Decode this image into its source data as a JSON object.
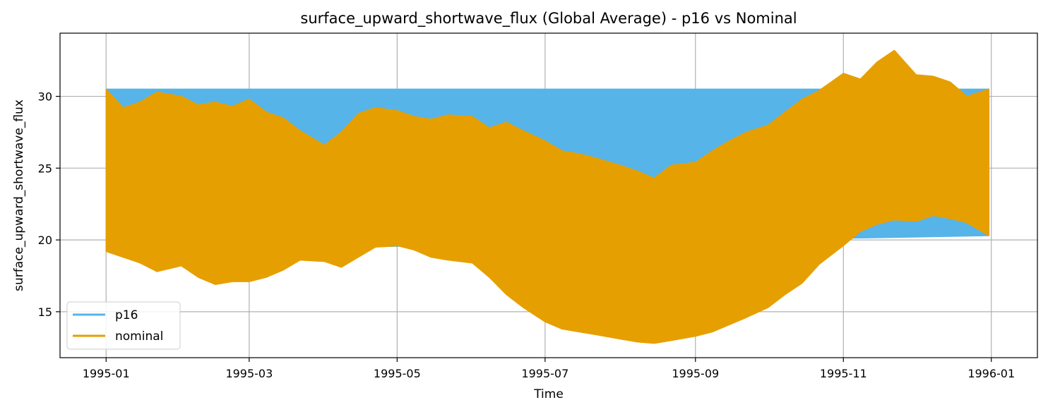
{
  "chart_data": {
    "type": "line",
    "title": "surface_upward_shortwave_flux (Global Average) - p16 vs Nominal",
    "xlabel": "Time",
    "ylabel": "surface_upward_shortwave_flux",
    "xlim": [
      "1994-12-13",
      "1996-01-20"
    ],
    "ylim": [
      11.8,
      34.4
    ],
    "x_ticks": [
      "1995-01",
      "1995-03",
      "1995-05",
      "1995-07",
      "1995-09",
      "1995-11",
      "1996-01"
    ],
    "y_ticks": [
      15,
      20,
      25,
      30
    ],
    "grid": true,
    "legend_position": "lower-left",
    "series": [
      {
        "name": "p16",
        "color": "#56B4E9",
        "x": [
          "1995-01-01",
          "1995-12-31"
        ],
        "upper": [
          30.5,
          30.5
        ],
        "lower": [
          19.2,
          20.3
        ]
      },
      {
        "name": "nominal",
        "color": "#E69F00",
        "x": [
          "1995-01-01",
          "1995-01-08",
          "1995-01-15",
          "1995-01-22",
          "1995-02-01",
          "1995-02-08",
          "1995-02-15",
          "1995-02-22",
          "1995-03-01",
          "1995-03-08",
          "1995-03-15",
          "1995-03-22",
          "1995-04-01",
          "1995-04-08",
          "1995-04-15",
          "1995-04-22",
          "1995-05-01",
          "1995-05-08",
          "1995-05-15",
          "1995-05-22",
          "1995-06-01",
          "1995-06-08",
          "1995-06-15",
          "1995-06-22",
          "1995-07-01",
          "1995-07-08",
          "1995-07-15",
          "1995-07-22",
          "1995-08-01",
          "1995-08-08",
          "1995-08-15",
          "1995-08-22",
          "1995-09-01",
          "1995-09-08",
          "1995-09-15",
          "1995-09-22",
          "1995-10-01",
          "1995-10-08",
          "1995-10-15",
          "1995-10-22",
          "1995-11-01",
          "1995-11-08",
          "1995-11-15",
          "1995-11-22",
          "1995-12-01",
          "1995-12-08",
          "1995-12-15",
          "1995-12-22",
          "1995-12-31"
        ],
        "upper": [
          30.5,
          29.2,
          29.6,
          30.3,
          30.0,
          29.4,
          29.6,
          29.3,
          29.8,
          28.9,
          28.5,
          27.6,
          26.6,
          27.5,
          28.8,
          29.2,
          29.0,
          28.6,
          28.4,
          28.7,
          28.6,
          27.8,
          28.2,
          27.6,
          26.9,
          26.2,
          26.0,
          25.7,
          25.2,
          24.8,
          24.3,
          25.2,
          25.4,
          26.2,
          26.9,
          27.5,
          28.0,
          28.9,
          29.8,
          30.4,
          31.6,
          31.2,
          32.4,
          33.2,
          31.5,
          31.4,
          31.0,
          30.0,
          30.5
        ],
        "lower": [
          19.2,
          18.8,
          18.4,
          17.8,
          18.2,
          17.4,
          16.9,
          17.1,
          17.1,
          17.4,
          17.9,
          18.6,
          18.5,
          18.1,
          18.8,
          19.5,
          19.6,
          19.3,
          18.8,
          18.6,
          18.4,
          17.4,
          16.2,
          15.3,
          14.3,
          13.8,
          13.6,
          13.4,
          13.1,
          12.9,
          12.8,
          13.0,
          13.3,
          13.6,
          14.1,
          14.6,
          15.3,
          16.2,
          17.0,
          18.3,
          19.6,
          20.6,
          21.1,
          21.4,
          21.3,
          21.7,
          21.5,
          21.2,
          20.3
        ]
      }
    ]
  }
}
